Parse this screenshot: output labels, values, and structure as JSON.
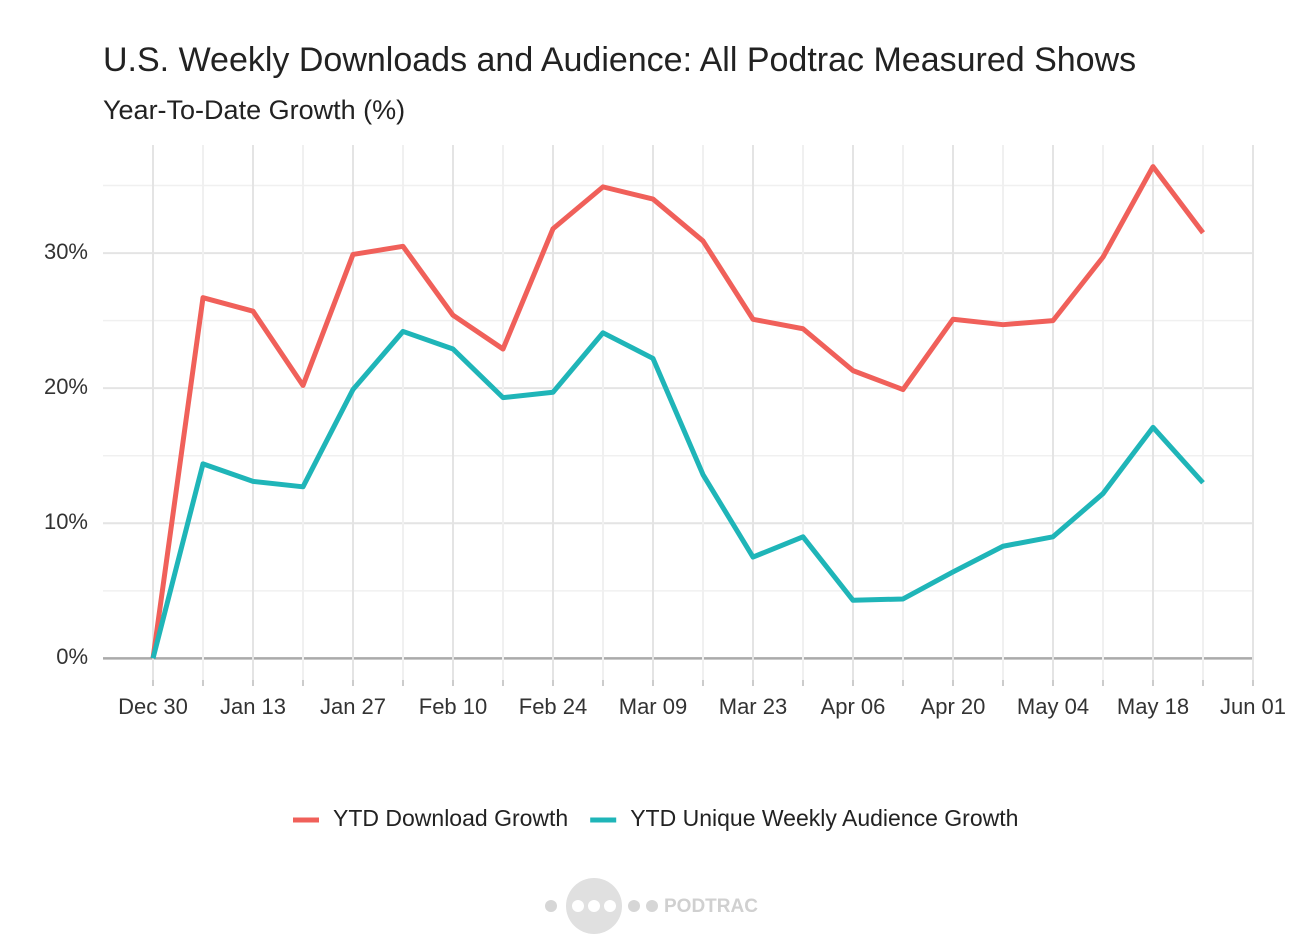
{
  "chart_data": {
    "type": "line",
    "title": "U.S. Weekly Downloads and Audience: All Podtrac Measured Shows",
    "subtitle": "Year-To-Date Growth (%)",
    "categories": [
      "Dec 30",
      null,
      "Jan 13",
      null,
      "Jan 27",
      null,
      "Feb 10",
      null,
      "Feb 24",
      null,
      "Mar 09",
      null,
      "Mar 23",
      null,
      "Apr 06",
      null,
      "Apr 20",
      null,
      "May 04",
      null,
      "May 18",
      null,
      "Jun 01"
    ],
    "series": [
      {
        "name": "YTD Download Growth",
        "color": "#f0605a",
        "values": [
          0,
          26.7,
          25.7,
          20.2,
          29.9,
          30.5,
          25.4,
          22.9,
          31.8,
          34.9,
          34.0,
          30.9,
          25.1,
          24.4,
          21.3,
          19.9,
          25.1,
          24.7,
          25.0,
          29.7,
          36.4,
          31.5,
          null
        ]
      },
      {
        "name": "YTD Unique Weekly Audience Growth",
        "color": "#1fb5b8",
        "values": [
          0,
          14.4,
          13.1,
          12.7,
          19.9,
          24.2,
          22.9,
          19.3,
          19.7,
          24.1,
          22.2,
          13.6,
          7.5,
          9.0,
          4.3,
          4.4,
          6.4,
          8.3,
          9.0,
          12.2,
          17.1,
          13.0,
          null
        ]
      }
    ],
    "ylim": [
      -1.6,
      38
    ],
    "yticks": [
      {
        "value": 0,
        "label": "0%"
      },
      {
        "value": 10,
        "label": "10%"
      },
      {
        "value": 20,
        "label": "20%"
      },
      {
        "value": 30,
        "label": "30%"
      }
    ],
    "grid": true,
    "legend": "bottom",
    "logo": "PODTRAC"
  }
}
